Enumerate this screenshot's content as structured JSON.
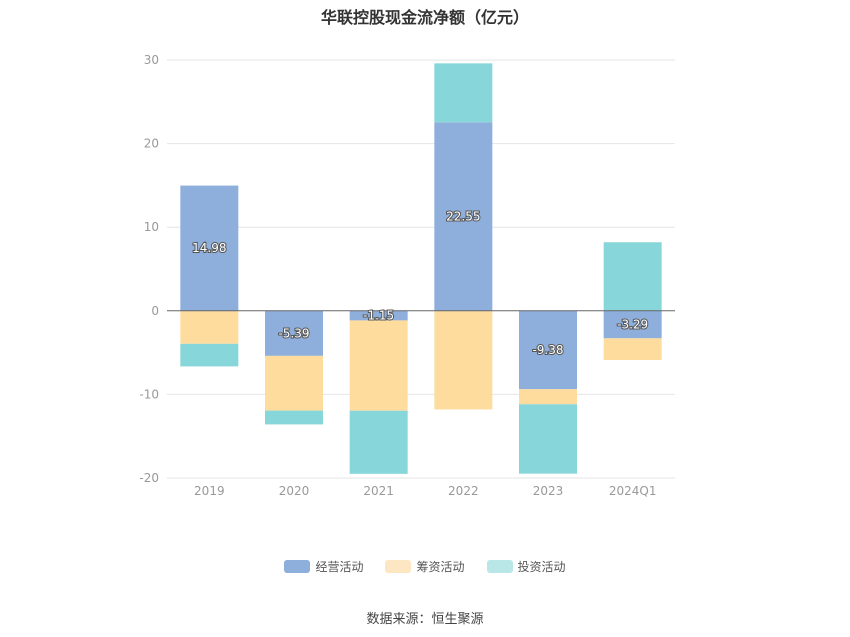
{
  "title": "华联控股现金流净额（亿元）",
  "source": "数据来源：恒生聚源",
  "chart_data": {
    "type": "bar",
    "stacked": true,
    "categories": [
      "2019",
      "2020",
      "2021",
      "2022",
      "2023",
      "2024Q1"
    ],
    "ylim": [
      -20,
      30
    ],
    "yticks": [
      30,
      20,
      10,
      0,
      -10,
      -20
    ],
    "grid": true,
    "legend_position": "bottom",
    "series": [
      {
        "name": "经营活动",
        "color": "#8eaedb",
        "values": [
          14.98,
          -5.39,
          -1.15,
          22.55,
          -9.38,
          -3.29
        ],
        "labels": [
          "14.98",
          "-5.39",
          "-1.15",
          "22.55",
          "-9.38",
          "-3.29"
        ]
      },
      {
        "name": "筹资活动",
        "color": "#fddc9e",
        "values": [
          -3.95,
          -6.55,
          -10.8,
          -11.8,
          -1.8,
          -2.6
        ]
      },
      {
        "name": "投资活动",
        "color": "#87d6d9",
        "values": [
          -2.7,
          -1.65,
          -7.55,
          7.05,
          -8.3,
          8.2
        ]
      }
    ]
  }
}
